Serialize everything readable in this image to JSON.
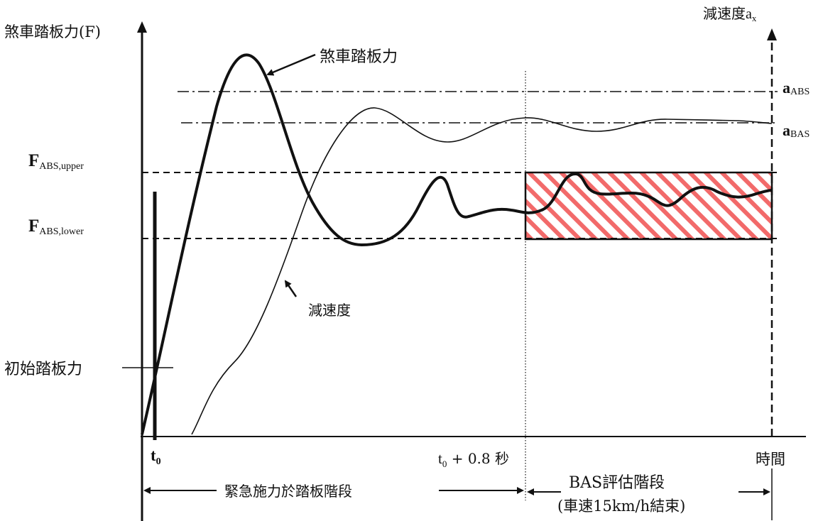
{
  "axes": {
    "left_label": "煞車踏板力(F)",
    "right_label_prefix": "減速度",
    "right_label_var": "a",
    "right_label_sub": "x",
    "time_label": "時間"
  },
  "levels": {
    "a_abs": {
      "main": "a",
      "sub": "ABS"
    },
    "a_bas": {
      "main": "a",
      "sub": "BAS"
    },
    "f_upper": {
      "main": "F",
      "sub": "ABS,upper"
    },
    "f_lower": {
      "main": "F",
      "sub": "ABS,lower"
    },
    "initial_pedal": "初始踏板力"
  },
  "curves": {
    "pedal_label": "煞車踏板力",
    "decel_label": "減速度"
  },
  "ticks": {
    "t0_main": "t",
    "t0_sub": "0",
    "t08_prefix": "t",
    "t08_sub": "0",
    "t08_suffix": " + 0.8 秒"
  },
  "phases": {
    "emergency": "緊急施力於踏板階段",
    "bas_eval": "BAS評估階段",
    "bas_end": "(車速15km/h結束)"
  },
  "colors": {
    "ink": "#111111",
    "hatch": "#f26a6a"
  }
}
